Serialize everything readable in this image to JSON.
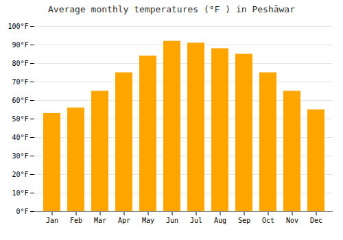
{
  "chart_data": {
    "type": "bar",
    "title": "Average monthly temperatures (°F ) in Peshāwar",
    "categories": [
      "Jan",
      "Feb",
      "Mar",
      "Apr",
      "May",
      "Jun",
      "Jul",
      "Aug",
      "Sep",
      "Oct",
      "Nov",
      "Dec"
    ],
    "values": [
      53,
      56,
      65,
      75,
      84,
      92,
      91,
      88,
      85,
      75,
      65,
      55
    ],
    "color": "#FFA500",
    "ylim": [
      0,
      100
    ],
    "yticks": [
      {
        "value": 0,
        "label": "0°F"
      },
      {
        "value": 10,
        "label": "10°F"
      },
      {
        "value": 20,
        "label": "20°F"
      },
      {
        "value": 30,
        "label": "30°F"
      },
      {
        "value": 40,
        "label": "40°F"
      },
      {
        "value": 50,
        "label": "50°F"
      },
      {
        "value": 60,
        "label": "60°F"
      },
      {
        "value": 70,
        "label": "70°F"
      },
      {
        "value": 80,
        "label": "80°F"
      },
      {
        "value": 90,
        "label": "90°F"
      },
      {
        "value": 100,
        "label": "100°F"
      }
    ],
    "grid": true
  }
}
